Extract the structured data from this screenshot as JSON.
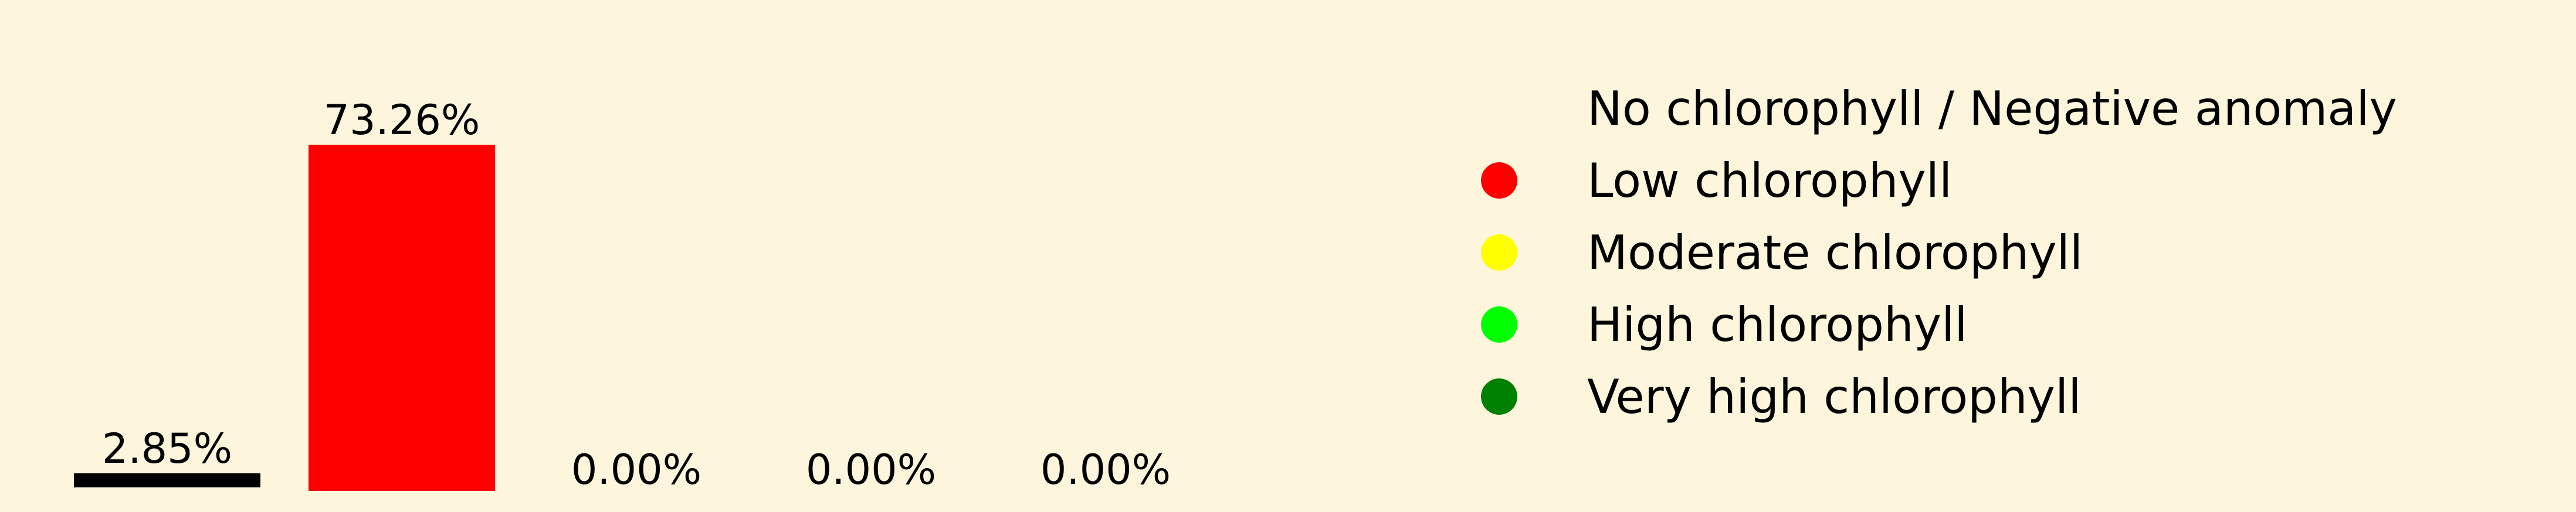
{
  "chart_data": {
    "type": "bar",
    "categories": [
      "No chlorophyll / Negative anomaly",
      "Low chlorophyll",
      "Moderate chlorophyll",
      "High chlorophyll",
      "Very high chlorophyll"
    ],
    "values": [
      2.85,
      73.26,
      0.0,
      0.0,
      0.0
    ],
    "data_labels": [
      "2.85%",
      "73.26%",
      "0.00%",
      "0.00%",
      "0.00%"
    ],
    "colors": [
      "#000000",
      "#ff0000",
      "#ffff00",
      "#00ff00",
      "#008000"
    ],
    "ylim": [
      0,
      73.26
    ],
    "grid": false,
    "axes_visible": false,
    "legend": {
      "placement": "right",
      "items": [
        {
          "label": "No chlorophyll / Negative anomaly",
          "color": "#000000",
          "marker": "none"
        },
        {
          "label": "Low chlorophyll",
          "color": "#ff0000",
          "marker": "circle"
        },
        {
          "label": "Moderate chlorophyll",
          "color": "#ffff00",
          "marker": "circle"
        },
        {
          "label": "High chlorophyll",
          "color": "#00ff00",
          "marker": "circle"
        },
        {
          "label": "Very high chlorophyll",
          "color": "#008000",
          "marker": "circle"
        }
      ]
    },
    "background_color": "#fdf6dc"
  }
}
